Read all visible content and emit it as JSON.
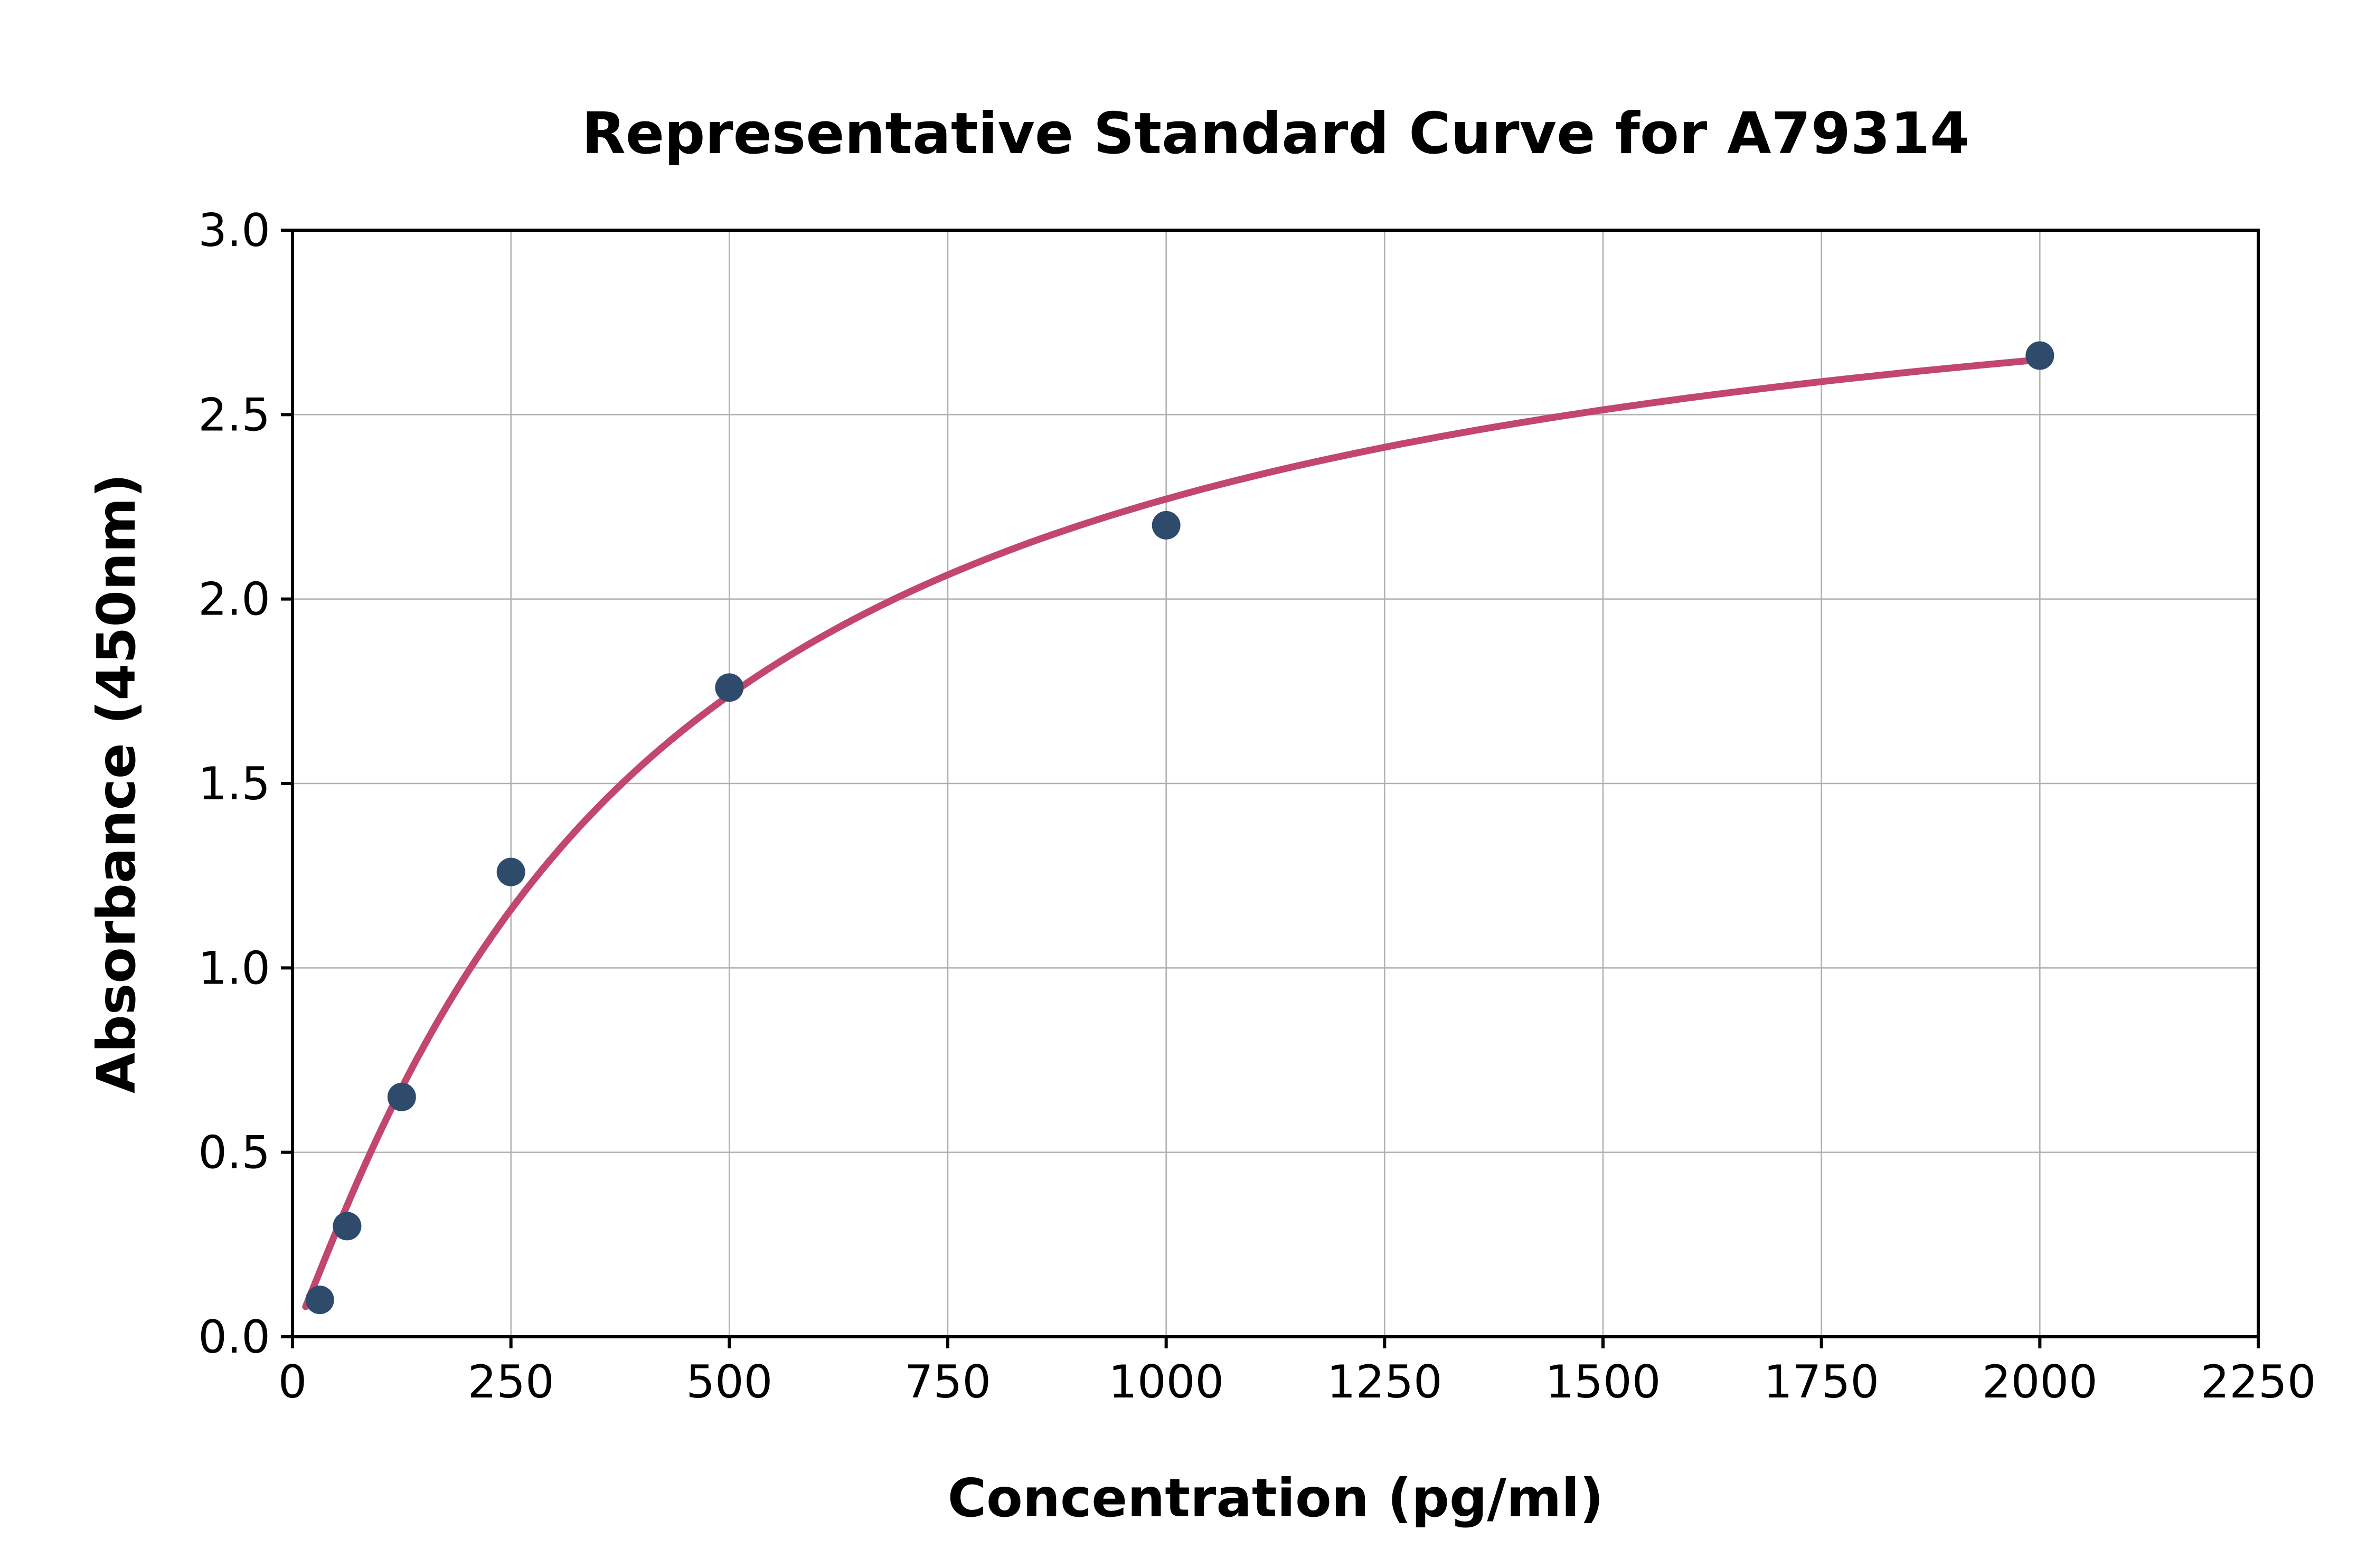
{
  "chart_data": {
    "type": "scatter",
    "title": "Representative Standard Curve for A79314",
    "xlabel": "Concentration (pg/ml)",
    "ylabel": "Absorbance (450nm)",
    "xlim": [
      0,
      2250
    ],
    "ylim": [
      0,
      3.0
    ],
    "x_ticks": [
      0,
      250,
      500,
      750,
      1000,
      1250,
      1500,
      1750,
      2000,
      2250
    ],
    "x_tick_labels": [
      "0",
      "250",
      "500",
      "750",
      "1000",
      "1250",
      "1500",
      "1750",
      "2000",
      "2250"
    ],
    "y_ticks": [
      0.0,
      0.5,
      1.0,
      1.5,
      2.0,
      2.5,
      3.0
    ],
    "y_tick_labels": [
      "0.0",
      "0.5",
      "1.0",
      "1.5",
      "2.0",
      "2.5",
      "3.0"
    ],
    "grid": true,
    "legend": "none",
    "series": [
      {
        "name": "standard-points",
        "type": "scatter",
        "x": [
          31.25,
          62.5,
          125,
          250,
          500,
          1000,
          2000
        ],
        "y": [
          0.1,
          0.3,
          0.65,
          1.26,
          1.76,
          2.2,
          2.66
        ]
      },
      {
        "name": "fit-curve",
        "type": "line",
        "model": "4PL",
        "params": {
          "a": 0.0,
          "b": 1.1,
          "c": 400,
          "d": 3.1
        },
        "x_start": 15,
        "x_end": 2005
      }
    ],
    "colors": {
      "curve": "#c2466f",
      "points": "#2f4b6b",
      "grid": "#b0b0b0",
      "spine": "#000000",
      "background": "#ffffff"
    }
  }
}
